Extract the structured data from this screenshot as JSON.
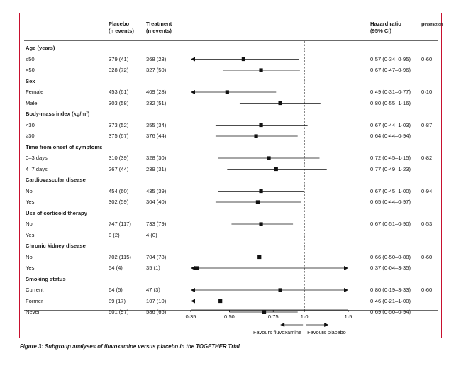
{
  "headers": {
    "placebo": [
      "Placebo",
      "(n events)"
    ],
    "treatment": [
      "Treatment",
      "(n events)"
    ],
    "hr": [
      "Hazard ratio",
      "(95% CI)"
    ],
    "p_main": "p",
    "p_sub": "interaction"
  },
  "caption": {
    "label": "Figure 3:",
    "text": " Subgroup analyses of fluvoxamine versus placebo in the TOGETHER Trial"
  },
  "chart_data": {
    "type": "forest",
    "scale": "log",
    "xlim": [
      0.35,
      1.5
    ],
    "reference_line": 1.0,
    "ticks": [
      {
        "value": 0.35,
        "label": "0·35"
      },
      {
        "value": 0.5,
        "label": "0·50"
      },
      {
        "value": 0.75,
        "label": "0·75"
      },
      {
        "value": 1.0,
        "label": "1·0"
      },
      {
        "value": 1.5,
        "label": "1·5"
      }
    ],
    "favours_left": "Favours fluvoxamine",
    "favours_right": "Favours placebo",
    "groups": [
      {
        "title": "Age (years)",
        "p": "0·60",
        "rows": [
          {
            "label": "≤50",
            "placebo": "379 (41)",
            "treatment": "368 (23)",
            "hr_text": "0·57 (0·34–0·95)",
            "hr": 0.57,
            "lo": 0.34,
            "hi": 0.95
          },
          {
            "label": ">50",
            "placebo": "328 (72)",
            "treatment": "327 (50)",
            "hr_text": "0·67 (0·47–0·96)",
            "hr": 0.67,
            "lo": 0.47,
            "hi": 0.96
          }
        ]
      },
      {
        "title": "Sex",
        "p": "0·10",
        "rows": [
          {
            "label": "Female",
            "placebo": "453 (61)",
            "treatment": "409 (28)",
            "hr_text": "0·49 (0·31–0·77)",
            "hr": 0.49,
            "lo": 0.31,
            "hi": 0.77
          },
          {
            "label": "Male",
            "placebo": "303 (58)",
            "treatment": "332 (51)",
            "hr_text": "0·80 (0·55–1·16)",
            "hr": 0.8,
            "lo": 0.55,
            "hi": 1.16
          }
        ]
      },
      {
        "title": "Body-mass index (kg/m²)",
        "p": "0·87",
        "rows": [
          {
            "label": "<30",
            "placebo": "373 (52)",
            "treatment": "355 (34)",
            "hr_text": "0·67 (0·44–1·03)",
            "hr": 0.67,
            "lo": 0.44,
            "hi": 1.03
          },
          {
            "label": "≥30",
            "placebo": "375 (67)",
            "treatment": "376 (44)",
            "hr_text": "0·64 (0·44–0·94)",
            "hr": 0.64,
            "lo": 0.44,
            "hi": 0.94
          }
        ]
      },
      {
        "title": "Time from onset of symptoms",
        "p": "0·82",
        "rows": [
          {
            "label": "0–3 days",
            "placebo": "310 (39)",
            "treatment": "328 (30)",
            "hr_text": "0·72 (0·45–1·15)",
            "hr": 0.72,
            "lo": 0.45,
            "hi": 1.15
          },
          {
            "label": "4–7 days",
            "placebo": "267 (44)",
            "treatment": "239 (31)",
            "hr_text": "0·77 (0·49–1·23)",
            "hr": 0.77,
            "lo": 0.49,
            "hi": 1.23
          }
        ]
      },
      {
        "title": "Cardiovascular disease",
        "p": "0·94",
        "rows": [
          {
            "label": "No",
            "placebo": "454 (60)",
            "treatment": "435 (39)",
            "hr_text": "0·67 (0·45–1·00)",
            "hr": 0.67,
            "lo": 0.45,
            "hi": 1.0
          },
          {
            "label": "Yes",
            "placebo": "302 (59)",
            "treatment": "304 (40)",
            "hr_text": "0·65 (0·44–0·97)",
            "hr": 0.65,
            "lo": 0.44,
            "hi": 0.97
          }
        ]
      },
      {
        "title": "Use of corticoid therapy",
        "p": "0·53",
        "rows": [
          {
            "label": "No",
            "placebo": "747 (117)",
            "treatment": "733 (79)",
            "hr_text": "0·67 (0·51–0·90)",
            "hr": 0.67,
            "lo": 0.51,
            "hi": 0.9
          },
          {
            "label": "Yes",
            "placebo": "8 (2)",
            "treatment": "4 (0)",
            "hr_text": "",
            "hr": null,
            "lo": null,
            "hi": null
          }
        ]
      },
      {
        "title": "Chronic kidney disease",
        "p": "0·60",
        "rows": [
          {
            "label": "No",
            "placebo": "702 (115)",
            "treatment": "704 (78)",
            "hr_text": "0·66 (0·50–0·88)",
            "hr": 0.66,
            "lo": 0.5,
            "hi": 0.88
          },
          {
            "label": "Yes",
            "placebo": "54 (4)",
            "treatment": "35 (1)",
            "hr_text": "0·37 (0·04–3·35)",
            "hr": 0.37,
            "lo": 0.04,
            "hi": 3.35
          }
        ]
      },
      {
        "title": "Smoking status",
        "p": "0·60",
        "rows": [
          {
            "label": "Current",
            "placebo": "64 (5)",
            "treatment": "47 (3)",
            "hr_text": "0·80 (0·19–3·33)",
            "hr": 0.8,
            "lo": 0.19,
            "hi": 3.33
          },
          {
            "label": "Former",
            "placebo": "89 (17)",
            "treatment": "107 (10)",
            "hr_text": "0·46 (0·21–1·00)",
            "hr": 0.46,
            "lo": 0.21,
            "hi": 1.0
          },
          {
            "label": "Never",
            "placebo": "601 (97)",
            "treatment": "586 (66)",
            "hr_text": "0·69 (0·50–0·94)",
            "hr": 0.69,
            "lo": 0.5,
            "hi": 0.94
          }
        ]
      }
    ]
  }
}
